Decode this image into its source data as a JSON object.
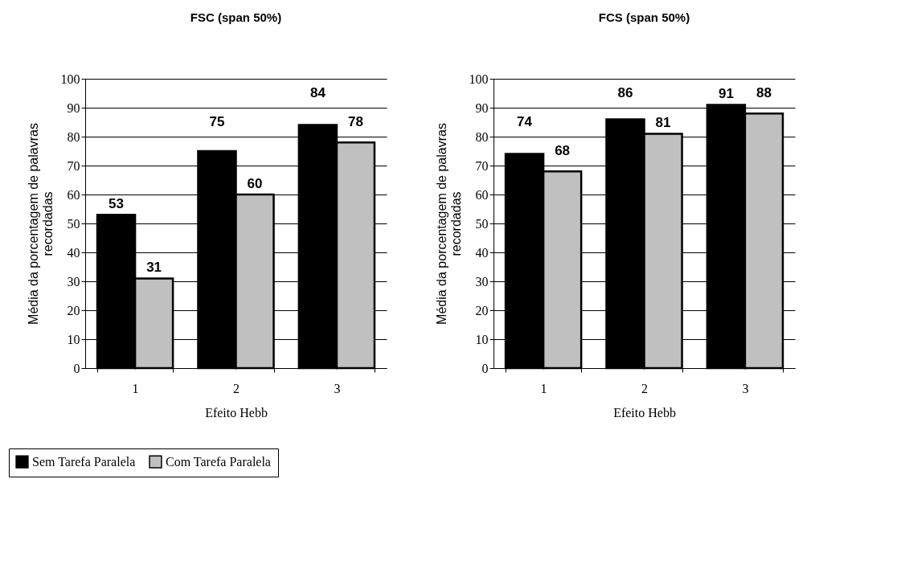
{
  "chart_data": [
    {
      "type": "bar",
      "title": "FSC (span 50%)",
      "xlabel": "Efeito Hebb",
      "ylabel": "Média da porcentagem de palavras recordadas",
      "categories": [
        "1",
        "2",
        "3"
      ],
      "series": [
        {
          "name": "Sem Tarefa Paralela",
          "color": "#000000",
          "values": [
            53,
            75,
            84
          ]
        },
        {
          "name": "Com Tarefa Paralela",
          "color": "#c0c0c0",
          "values": [
            31,
            60,
            78
          ]
        }
      ],
      "ylim": [
        0,
        100
      ],
      "yticks": [
        0,
        10,
        20,
        30,
        40,
        50,
        60,
        70,
        80,
        90,
        100
      ],
      "grid": "y",
      "data_labels": true,
      "legend": "bottom"
    },
    {
      "type": "bar",
      "title": "FCS (span 50%)",
      "xlabel": "Efeito Hebb",
      "ylabel": "Média da porcentagem de palavras recordadas",
      "categories": [
        "1",
        "2",
        "3"
      ],
      "series": [
        {
          "color": "#000000",
          "values": [
            74,
            86,
            91
          ]
        },
        {
          "color": "#c0c0c0",
          "values": [
            68,
            81,
            88
          ]
        }
      ],
      "ylim": [
        0,
        100
      ],
      "yticks": [
        0,
        10,
        20,
        30,
        40,
        50,
        60,
        70,
        80,
        90,
        100
      ],
      "grid": "y",
      "data_labels": true
    }
  ]
}
